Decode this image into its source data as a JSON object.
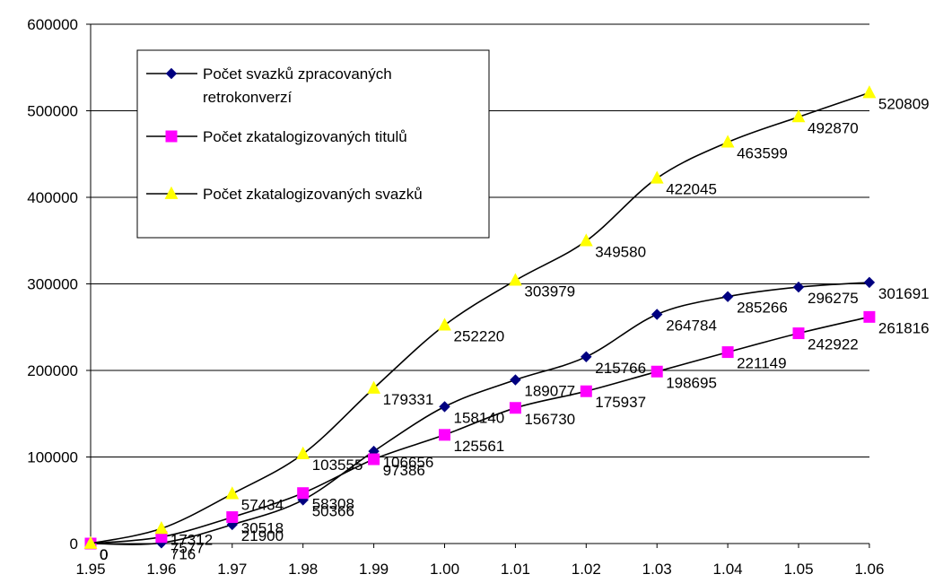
{
  "chart_data": {
    "type": "line",
    "x": [
      "1.95",
      "1.96",
      "1.97",
      "1.98",
      "1.99",
      "1.00",
      "1.01",
      "1.02",
      "1.03",
      "1.04",
      "1.05",
      "1.06"
    ],
    "ylim": [
      0,
      600000
    ],
    "yticks": [
      "0",
      "100000",
      "200000",
      "300000",
      "400000",
      "500000",
      "600000"
    ],
    "grid": "horizontal",
    "legend_position": "top-left",
    "series": [
      {
        "name": "Počet svazků zpracovaných retrokonverzí",
        "name_lines": [
          "Počet svazků zpracovaných",
          "retrokonverzí"
        ],
        "marker": "diamond",
        "color": "#000080",
        "values": [
          0,
          716,
          21900,
          50366,
          106656,
          158140,
          189077,
          215766,
          264784,
          285266,
          296275,
          301691
        ],
        "labels": [
          "0",
          "716",
          "21900",
          "50366",
          "106656",
          "158140",
          "189077",
          "215766",
          "264784",
          "285266",
          "296275",
          "301691"
        ]
      },
      {
        "name": "Počet zkatalogizovaných titulů",
        "name_lines": [
          "Počet zkatalogizovaných titulů"
        ],
        "marker": "square",
        "color": "#ff00ff",
        "values": [
          0,
          7577,
          30518,
          58308,
          97386,
          125561,
          156730,
          175937,
          198695,
          221149,
          242922,
          261816
        ],
        "labels": [
          "0",
          "7577",
          "30518",
          "58308",
          "97386",
          "125561",
          "156730",
          "175937",
          "198695",
          "221149",
          "242922",
          "261816"
        ]
      },
      {
        "name": "Počet zkatalogizovaných svazků",
        "name_lines": [
          "Počet zkatalogizovaných svazků"
        ],
        "marker": "triangle",
        "color": "#ffff00",
        "values": [
          0,
          17312,
          57434,
          103555,
          179331,
          252220,
          303979,
          349580,
          422045,
          463599,
          492870,
          520809
        ],
        "labels": [
          "0",
          "17312",
          "57434",
          "103555",
          "179331",
          "252220",
          "303979",
          "349580",
          "422045",
          "463599",
          "492870",
          "520809"
        ]
      }
    ]
  }
}
